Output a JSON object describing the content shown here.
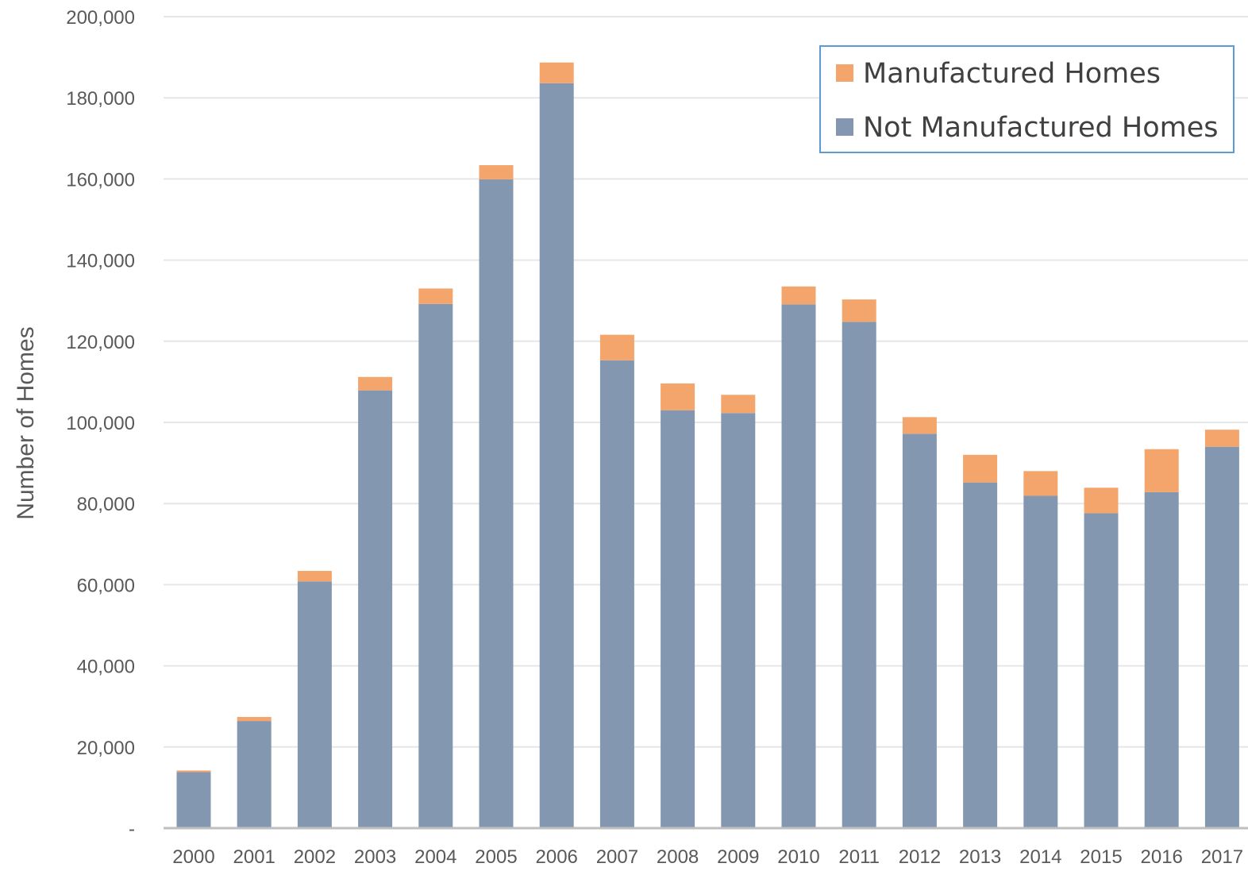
{
  "chart_data": {
    "type": "bar",
    "stacked": true,
    "title": "",
    "xlabel": "",
    "ylabel": "Number of Homes",
    "ylim": [
      0,
      200000
    ],
    "yticks": [
      {
        "value": 0,
        "label": "-"
      },
      {
        "value": 20000,
        "label": "20,000"
      },
      {
        "value": 40000,
        "label": "40,000"
      },
      {
        "value": 60000,
        "label": "60,000"
      },
      {
        "value": 80000,
        "label": "80,000"
      },
      {
        "value": 100000,
        "label": "100,000"
      },
      {
        "value": 120000,
        "label": "120,000"
      },
      {
        "value": 140000,
        "label": "140,000"
      },
      {
        "value": 160000,
        "label": "160,000"
      },
      {
        "value": 180000,
        "label": "180,000"
      },
      {
        "value": 200000,
        "label": "200,000"
      }
    ],
    "grid": true,
    "legend_position": "top-right",
    "categories": [
      "2000",
      "2001",
      "2002",
      "2003",
      "2004",
      "2005",
      "2006",
      "2007",
      "2008",
      "2009",
      "2010",
      "2011",
      "2012",
      "2013",
      "2014",
      "2015",
      "2016",
      "2017"
    ],
    "series": [
      {
        "name": "Not Manufactured Homes",
        "color": "#8497b0",
        "values": [
          13800,
          26400,
          60800,
          107900,
          129200,
          159900,
          183600,
          115300,
          103000,
          102300,
          129100,
          124800,
          97200,
          85200,
          81900,
          77600,
          82800,
          94000
        ]
      },
      {
        "name": "Manufactured Homes",
        "color": "#f4a56c",
        "values": [
          400,
          1000,
          2600,
          3300,
          3800,
          3500,
          5100,
          6300,
          6600,
          4500,
          4400,
          5500,
          4100,
          6800,
          6100,
          6300,
          10600,
          4200
        ]
      }
    ],
    "legend": [
      {
        "label": "Manufactured Homes",
        "color": "#f4a56c"
      },
      {
        "label": "Not Manufactured Homes",
        "color": "#8497b0"
      }
    ]
  }
}
